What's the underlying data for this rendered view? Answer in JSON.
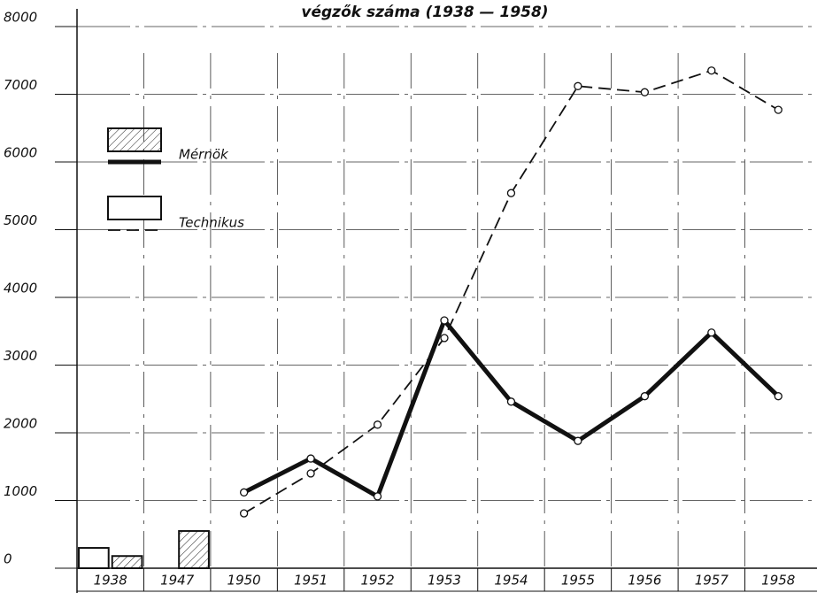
{
  "chart_data": {
    "type": "bar-line",
    "title": "végzők száma (1938 — 1958)",
    "categories": [
      "1938",
      "1947",
      "1950",
      "1951",
      "1952",
      "1953",
      "1954",
      "1955",
      "1956",
      "1957",
      "1958"
    ],
    "ylim": [
      0,
      8000
    ],
    "yticks": [
      0,
      1000,
      2000,
      3000,
      4000,
      5000,
      6000,
      7000,
      8000
    ],
    "grid": true,
    "series": [
      {
        "name": "Technikus",
        "color": "#111111",
        "style": "dashed",
        "hatch": false,
        "bar_values": [
          300,
          null,
          null,
          null,
          null,
          null,
          null,
          null,
          null,
          null,
          null
        ],
        "values": [
          null,
          null,
          810,
          1400,
          2120,
          3400,
          5540,
          7120,
          7030,
          7350,
          6770
        ]
      },
      {
        "name": "Mérnök",
        "color": "#111111",
        "style": "thick",
        "hatch": true,
        "bar_values": [
          180,
          550,
          null,
          null,
          null,
          null,
          null,
          null,
          null,
          null,
          null
        ],
        "values": [
          null,
          null,
          1120,
          1620,
          1060,
          3660,
          2460,
          1880,
          2540,
          3480,
          2540
        ]
      }
    ]
  }
}
